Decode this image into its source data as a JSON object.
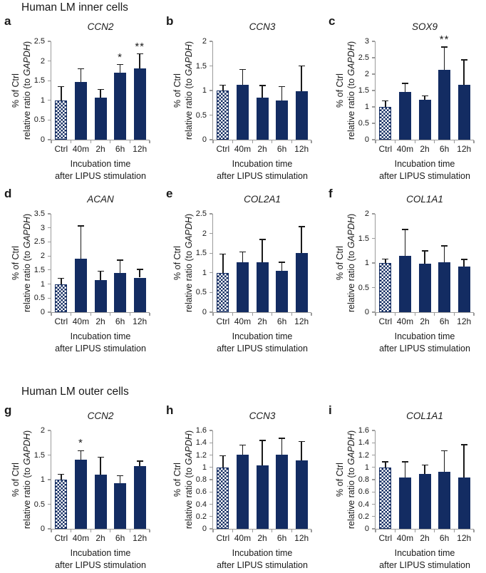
{
  "page": {
    "section1_title": "Human LM inner cells",
    "section2_title": "Human LM outer cells"
  },
  "axis": {
    "y_label_line1": "% of Ctrl",
    "y_label_line2_prefix": "relative ratio (to ",
    "y_label_line2_italic": "GAPDH",
    "y_label_line2_suffix": ")",
    "x_title_line1": "Incubation time",
    "x_title_line2": "after LIPUS stimulation"
  },
  "colors": {
    "bar": "#132c62",
    "error_bar": "#1a1a1a",
    "axis_line": "#9b9b9b",
    "text": "#1a1a1a",
    "background": "#ffffff"
  },
  "chart_data": [
    {
      "panel": "a",
      "type": "bar",
      "group": "Human LM inner cells",
      "title": "CCN2",
      "categories": [
        "Ctrl",
        "40m",
        "2h",
        "6h",
        "12h"
      ],
      "values": [
        1.0,
        1.47,
        1.07,
        1.7,
        1.81
      ],
      "errors": [
        0.35,
        0.33,
        0.21,
        0.21,
        0.37
      ],
      "significance": [
        "",
        "",
        "",
        "*",
        "**"
      ],
      "ylim": [
        0,
        2.5
      ],
      "ystep": 0.5,
      "grid": false,
      "legend": "none",
      "ylabel": "% of Ctrl relative ratio (to GAPDH)",
      "xlabel": "Incubation time after LIPUS stimulation"
    },
    {
      "panel": "b",
      "type": "bar",
      "group": "Human LM inner cells",
      "title": "CCN3",
      "categories": [
        "Ctrl",
        "40m",
        "2h",
        "6h",
        "12h"
      ],
      "values": [
        1.0,
        1.12,
        0.85,
        0.8,
        0.98
      ],
      "errors": [
        0.11,
        0.31,
        0.25,
        0.28,
        0.52
      ],
      "significance": [
        "",
        "",
        "",
        "",
        ""
      ],
      "ylim": [
        0,
        2
      ],
      "ystep": 0.5,
      "grid": false,
      "legend": "none",
      "ylabel": "% of Ctrl relative ratio (to GAPDH)",
      "xlabel": "Incubation time after LIPUS stimulation"
    },
    {
      "panel": "c",
      "type": "bar",
      "group": "Human LM inner cells",
      "title": "SOX9",
      "categories": [
        "Ctrl",
        "40m",
        "2h",
        "6h",
        "12h"
      ],
      "values": [
        1.0,
        1.45,
        1.21,
        2.13,
        1.67
      ],
      "errors": [
        0.19,
        0.27,
        0.13,
        0.7,
        0.76
      ],
      "significance": [
        "",
        "",
        "",
        "**",
        ""
      ],
      "ylim": [
        0,
        3
      ],
      "ystep": 0.5,
      "grid": false,
      "legend": "none",
      "ylabel": "% of Ctrl relative ratio (to GAPDH)",
      "xlabel": "Incubation time after LIPUS stimulation"
    },
    {
      "panel": "d",
      "type": "bar",
      "group": "Human LM inner cells",
      "title": "ACAN",
      "categories": [
        "Ctrl",
        "40m",
        "2h",
        "6h",
        "12h"
      ],
      "values": [
        1.0,
        1.9,
        1.15,
        1.4,
        1.23
      ],
      "errors": [
        0.2,
        1.17,
        0.31,
        0.45,
        0.29
      ],
      "significance": [
        "",
        "",
        "",
        "",
        ""
      ],
      "ylim": [
        0,
        3.5
      ],
      "ystep": 0.5,
      "grid": false,
      "legend": "none",
      "ylabel": "% of Ctrl relative ratio (to GAPDH)",
      "xlabel": "Incubation time after LIPUS stimulation"
    },
    {
      "panel": "e",
      "type": "bar",
      "group": "Human LM inner cells",
      "title": "COL2A1",
      "categories": [
        "Ctrl",
        "40m",
        "2h",
        "6h",
        "12h"
      ],
      "values": [
        1.0,
        1.27,
        1.26,
        1.05,
        1.5
      ],
      "errors": [
        0.48,
        0.26,
        0.59,
        0.22,
        0.67
      ],
      "significance": [
        "",
        "",
        "",
        "",
        ""
      ],
      "ylim": [
        0,
        2.5
      ],
      "ystep": 0.5,
      "grid": false,
      "legend": "none",
      "ylabel": "% of Ctrl relative ratio (to GAPDH)",
      "xlabel": "Incubation time after LIPUS stimulation"
    },
    {
      "panel": "f",
      "type": "bar",
      "group": "Human LM inner cells",
      "title": "COL1A1",
      "categories": [
        "Ctrl",
        "40m",
        "2h",
        "6h",
        "12h"
      ],
      "values": [
        1.0,
        1.14,
        0.98,
        1.02,
        0.93
      ],
      "errors": [
        0.08,
        0.54,
        0.27,
        0.33,
        0.14
      ],
      "significance": [
        "",
        "",
        "",
        "",
        ""
      ],
      "ylim": [
        0,
        2
      ],
      "ystep": 0.5,
      "grid": false,
      "legend": "none",
      "ylabel": "% of Ctrl relative ratio (to GAPDH)",
      "xlabel": "Incubation time after LIPUS stimulation"
    },
    {
      "panel": "g",
      "type": "bar",
      "group": "Human LM outer cells",
      "title": "CCN2",
      "categories": [
        "Ctrl",
        "40m",
        "2h",
        "6h",
        "12h"
      ],
      "values": [
        1.0,
        1.4,
        1.1,
        0.93,
        1.27
      ],
      "errors": [
        0.11,
        0.19,
        0.36,
        0.15,
        0.11
      ],
      "significance": [
        "",
        "*",
        "",
        "",
        ""
      ],
      "ylim": [
        0,
        2
      ],
      "ystep": 0.5,
      "grid": false,
      "legend": "none",
      "ylabel": "% of Ctrl relative ratio (to GAPDH)",
      "xlabel": "Incubation time after LIPUS stimulation"
    },
    {
      "panel": "h",
      "type": "bar",
      "group": "Human LM outer cells",
      "title": "CCN3",
      "categories": [
        "Ctrl",
        "40m",
        "2h",
        "6h",
        "12h"
      ],
      "values": [
        1.0,
        1.21,
        1.03,
        1.21,
        1.11
      ],
      "errors": [
        0.19,
        0.15,
        0.41,
        0.26,
        0.31
      ],
      "significance": [
        "",
        "",
        "",
        "",
        ""
      ],
      "ylim": [
        0,
        1.6
      ],
      "ystep": 0.2,
      "grid": false,
      "legend": "none",
      "ylabel": "% of Ctrl relative ratio (to GAPDH)",
      "xlabel": "Incubation time after LIPUS stimulation"
    },
    {
      "panel": "i",
      "type": "bar",
      "group": "Human LM outer cells",
      "title": "COL1A1",
      "categories": [
        "Ctrl",
        "40m",
        "2h",
        "6h",
        "12h"
      ],
      "values": [
        1.0,
        0.83,
        0.89,
        0.93,
        0.83
      ],
      "errors": [
        0.09,
        0.26,
        0.15,
        0.34,
        0.54
      ],
      "significance": [
        "",
        "",
        "",
        "",
        ""
      ],
      "ylim": [
        0,
        1.6
      ],
      "ystep": 0.2,
      "grid": false,
      "legend": "none",
      "ylabel": "% of Ctrl relative ratio (to GAPDH)",
      "xlabel": "Incubation time after LIPUS stimulation"
    }
  ]
}
